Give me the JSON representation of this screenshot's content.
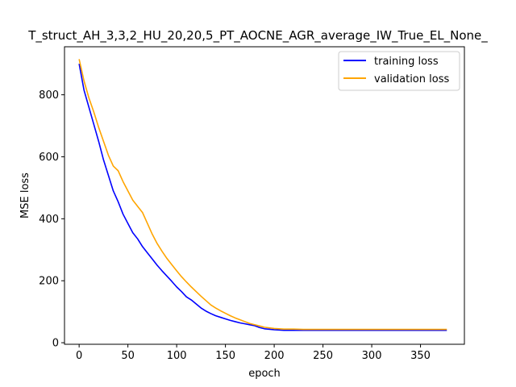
{
  "chart_data": {
    "type": "line",
    "title": "T_struct_AH_3,3,2_HU_20,20,5_PT_AOCNE_AGR_average_IW_True_EL_None_",
    "xlabel": "epoch",
    "ylabel": "MSE loss",
    "xlim": [
      -15,
      395
    ],
    "ylim": [
      -5,
      955
    ],
    "xticks": [
      0,
      50,
      100,
      150,
      200,
      250,
      300,
      350
    ],
    "yticks": [
      0,
      200,
      400,
      600,
      800
    ],
    "grid": false,
    "legend_position": "top-right",
    "series": [
      {
        "name": "training loss",
        "color": "#0000ff",
        "x": [
          0,
          5,
          10,
          15,
          20,
          25,
          30,
          35,
          40,
          45,
          50,
          55,
          60,
          65,
          70,
          75,
          80,
          85,
          90,
          95,
          100,
          105,
          110,
          115,
          120,
          125,
          130,
          135,
          140,
          145,
          150,
          155,
          160,
          165,
          170,
          175,
          180,
          185,
          190,
          200,
          210,
          220,
          230,
          240,
          250,
          260,
          270,
          280,
          290,
          300,
          310,
          320,
          330,
          340,
          350,
          360,
          370,
          377
        ],
        "y": [
          900,
          815,
          760,
          705,
          650,
          590,
          540,
          490,
          455,
          415,
          385,
          355,
          335,
          310,
          290,
          270,
          250,
          232,
          215,
          198,
          180,
          165,
          148,
          138,
          125,
          112,
          102,
          94,
          87,
          82,
          77,
          72,
          68,
          64,
          61,
          58,
          55,
          49,
          45,
          42,
          40,
          40,
          40,
          40,
          40,
          40,
          40,
          40,
          40,
          40,
          40,
          40,
          40,
          40,
          40,
          40,
          40,
          40
        ]
      },
      {
        "name": "validation loss",
        "color": "#ffa500",
        "x": [
          0,
          5,
          10,
          15,
          20,
          25,
          30,
          35,
          40,
          45,
          50,
          55,
          60,
          65,
          70,
          75,
          80,
          85,
          90,
          95,
          100,
          105,
          110,
          115,
          120,
          125,
          130,
          135,
          140,
          145,
          150,
          155,
          160,
          165,
          170,
          175,
          180,
          185,
          190,
          200,
          210,
          220,
          230,
          240,
          250,
          260,
          270,
          280,
          290,
          300,
          310,
          320,
          330,
          340,
          350,
          360,
          370,
          377
        ],
        "y": [
          915,
          845,
          790,
          745,
          695,
          650,
          605,
          570,
          555,
          520,
          490,
          460,
          440,
          420,
          385,
          350,
          320,
          295,
          272,
          252,
          232,
          213,
          196,
          180,
          165,
          150,
          136,
          122,
          112,
          103,
          95,
          87,
          80,
          74,
          68,
          62,
          58,
          54,
          50,
          46,
          44,
          44,
          43,
          43,
          43,
          43,
          43,
          43,
          43,
          43,
          43,
          43,
          43,
          43,
          43,
          43,
          43,
          43
        ]
      }
    ]
  }
}
